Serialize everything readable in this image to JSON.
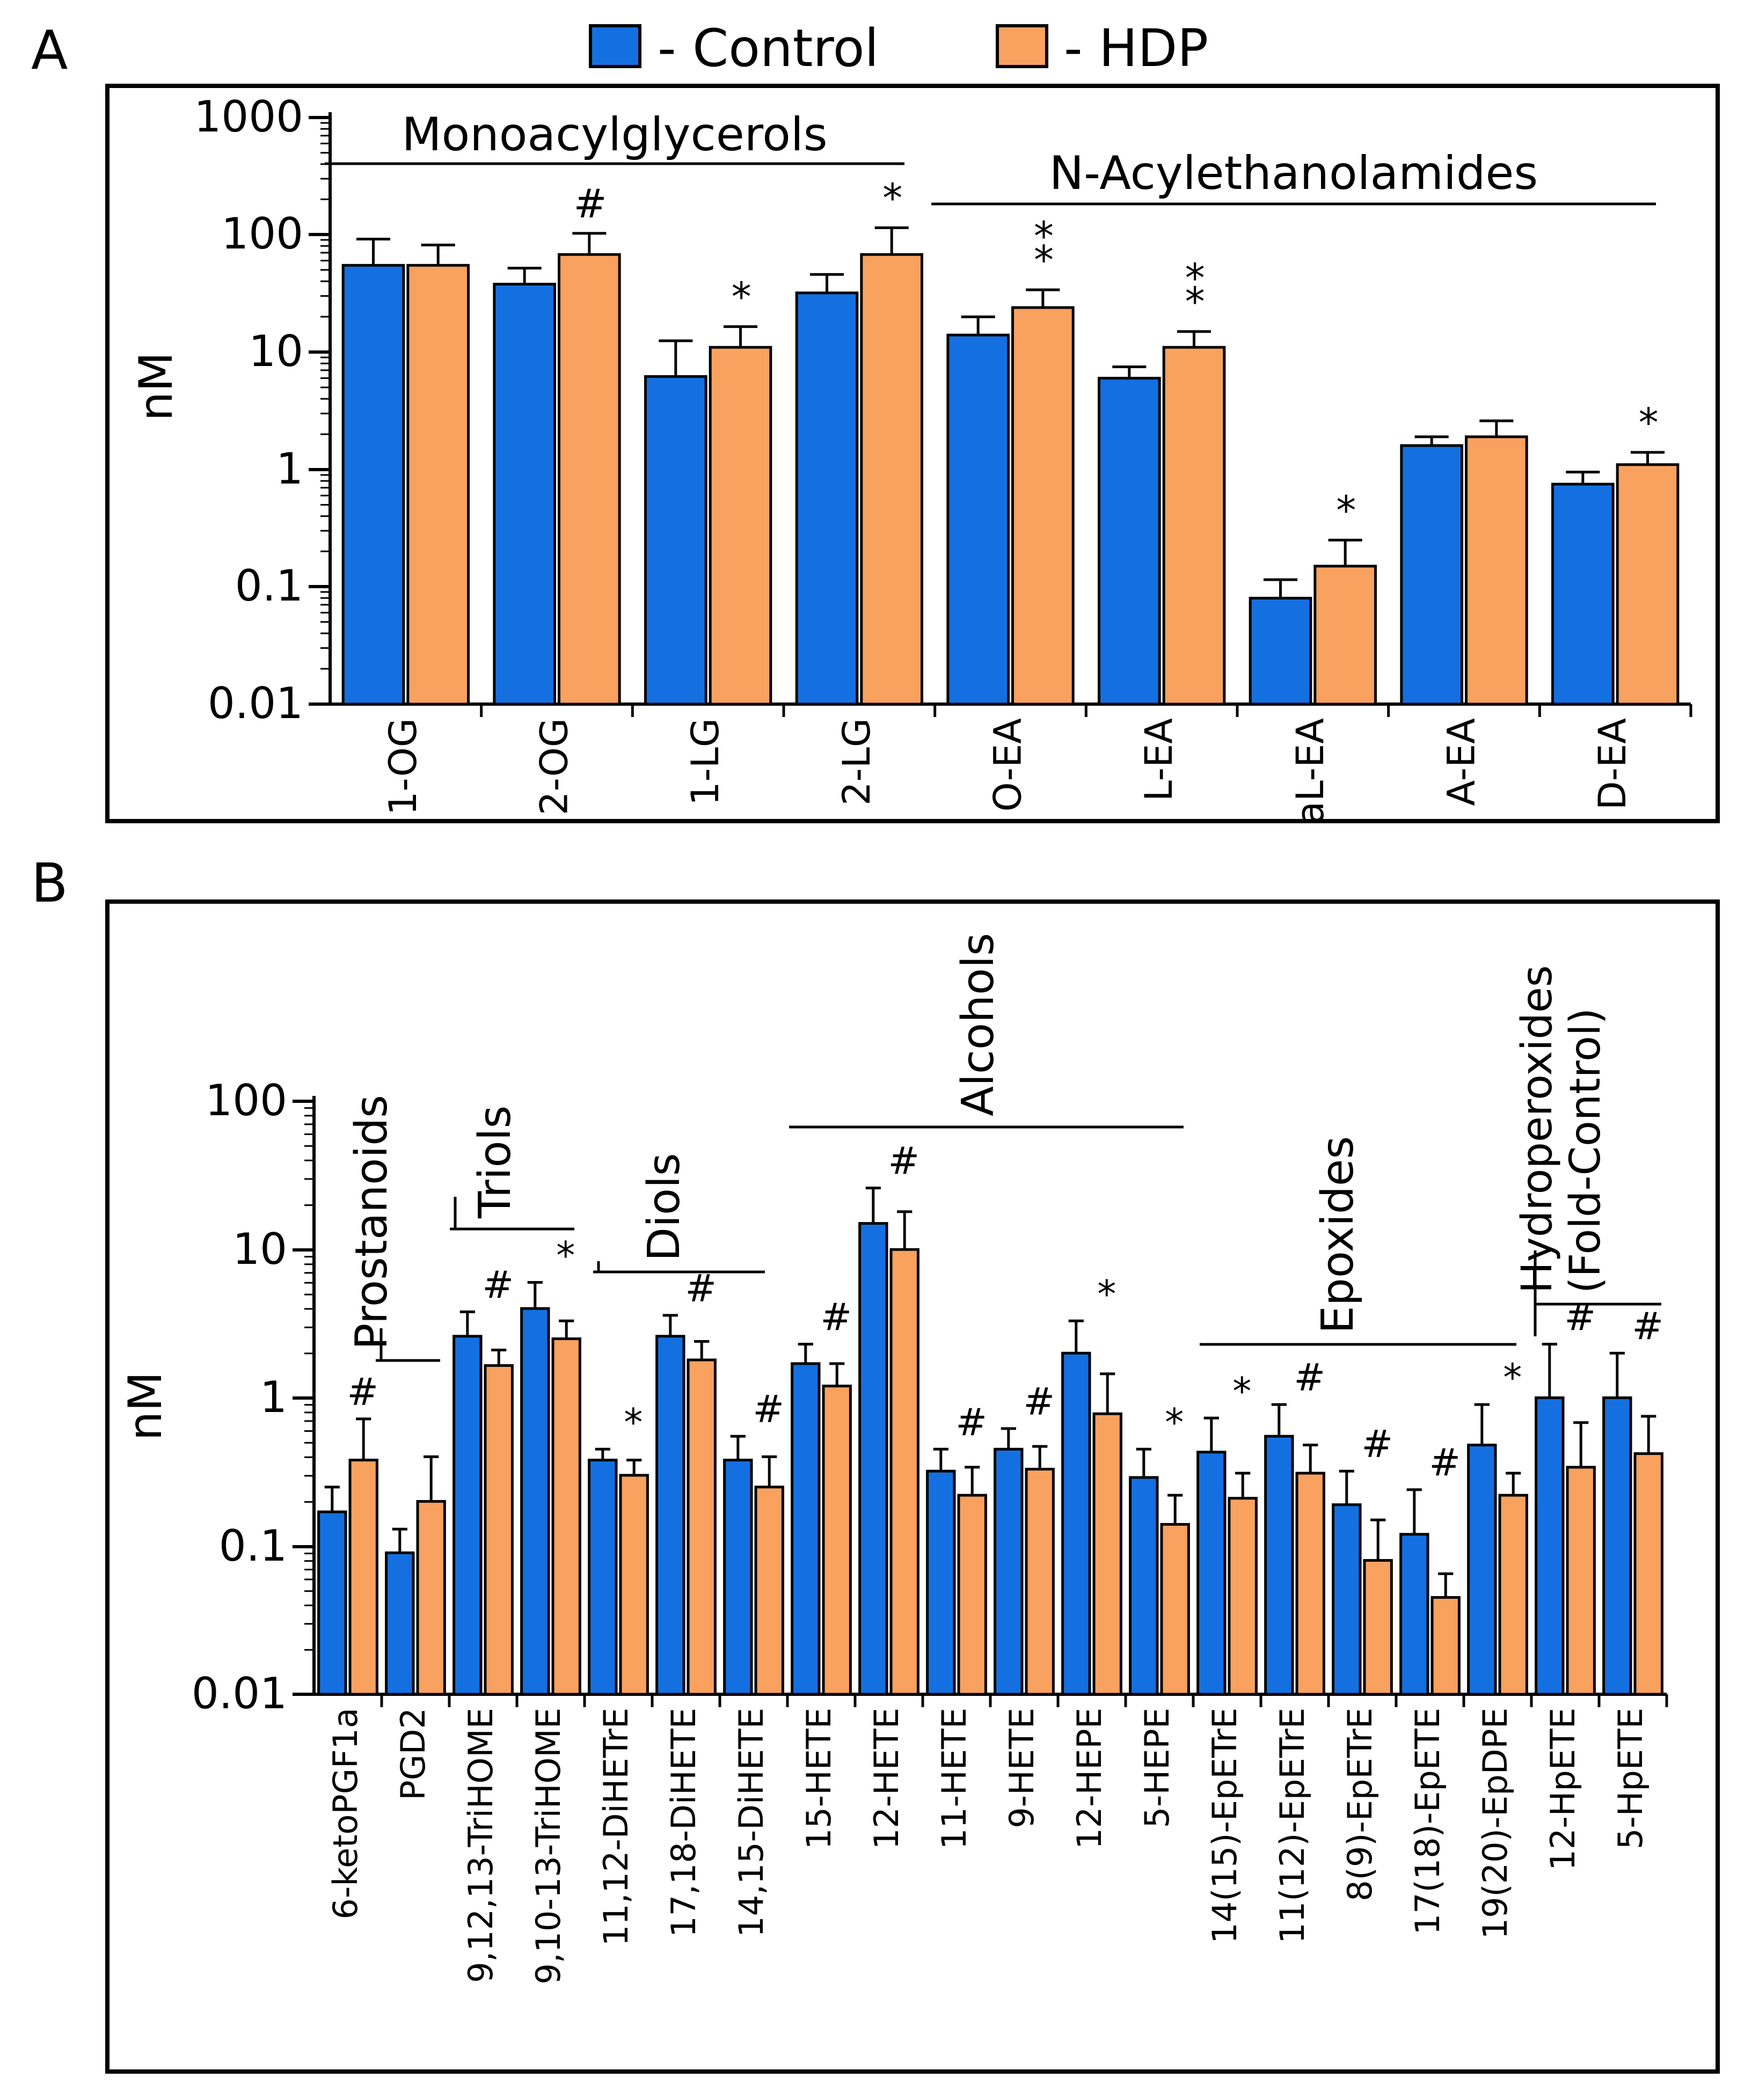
{
  "legend": {
    "items": [
      {
        "label": "- Control",
        "color": "#1470E0"
      },
      {
        "label": "- HDP",
        "color": "#F9A15E"
      }
    ]
  },
  "panel_labels": {
    "a": "A",
    "b": "B"
  },
  "colors": {
    "control": "#1470E0",
    "hdp": "#F9A15E",
    "stroke": "#000000"
  },
  "chart_data": [
    {
      "type": "bar",
      "panel": "A",
      "ylabel": "nM",
      "yscale": "log",
      "ylim": [
        0.01,
        1000
      ],
      "yticks": [
        "0.01",
        "0.1",
        "1",
        "10",
        "100",
        "1000"
      ],
      "categories": [
        "1-OG",
        "2-OG",
        "1-LG",
        "2-LG",
        "O-EA",
        "L-EA",
        "aL-EA",
        "A-EA",
        "D-EA"
      ],
      "series": [
        {
          "name": "Control",
          "values": [
            55,
            38,
            6.2,
            32,
            14,
            6,
            0.08,
            1.6,
            0.75
          ],
          "errors": [
            92,
            52,
            12.5,
            46,
            20,
            7.5,
            0.115,
            1.9,
            0.95
          ]
        },
        {
          "name": "HDP",
          "values": [
            55,
            68,
            11,
            68,
            24,
            11,
            0.15,
            1.9,
            1.1
          ],
          "errors": [
            82,
            103,
            16.5,
            115,
            34,
            15,
            0.25,
            2.6,
            1.4
          ]
        }
      ],
      "significance": [
        "",
        "#",
        "*",
        "*",
        "**",
        "**",
        "*",
        "",
        "*"
      ],
      "groups": [
        {
          "label": "Monoacylglycerols",
          "from": 0,
          "to": 3
        },
        {
          "label": "N-Acylethanolamides",
          "from": 4,
          "to": 8
        }
      ]
    },
    {
      "type": "bar",
      "panel": "B",
      "ylabel": "nM",
      "yscale": "log",
      "ylim": [
        0.01,
        100
      ],
      "yticks": [
        "0.01",
        "0.1",
        "1",
        "10",
        "100"
      ],
      "categories": [
        "6-ketoPGF1a",
        "PGD2",
        "9,12,13-TriHOME",
        "9,10-13-TriHOME",
        "11,12-DiHETrE",
        "17,18-DiHETE",
        "14,15-DiHETE",
        "15-HETE",
        "12-HETE",
        "11-HETE",
        "9-HETE",
        "12-HEPE",
        "5-HEPE",
        "14(15)-EpETrE",
        "11(12)-EpETrE",
        "8(9)-EpETrE",
        "17(18)-EpETE",
        "19(20)-EpDPE",
        "12-HpETE",
        "5-HpETE"
      ],
      "series": [
        {
          "name": "Control",
          "values": [
            0.17,
            0.09,
            2.6,
            4,
            0.38,
            2.6,
            0.38,
            1.7,
            15,
            0.32,
            0.45,
            2,
            0.29,
            0.43,
            0.55,
            0.19,
            0.12,
            0.48,
            1,
            1
          ],
          "errors": [
            0.25,
            0.13,
            3.8,
            6,
            0.45,
            3.6,
            0.55,
            2.3,
            26,
            0.45,
            0.62,
            3.3,
            0.45,
            0.73,
            0.9,
            0.32,
            0.24,
            0.9,
            2.3,
            2
          ]
        },
        {
          "name": "HDP",
          "values": [
            0.38,
            0.2,
            1.65,
            2.5,
            0.3,
            1.8,
            0.25,
            1.2,
            10,
            0.22,
            0.33,
            0.78,
            0.14,
            0.21,
            0.31,
            0.08,
            0.045,
            0.22,
            0.34,
            0.42
          ],
          "errors": [
            0.72,
            0.4,
            2.1,
            3.3,
            0.38,
            2.4,
            0.4,
            1.7,
            18,
            0.34,
            0.47,
            1.45,
            0.22,
            0.31,
            0.48,
            0.15,
            0.065,
            0.31,
            0.68,
            0.75
          ]
        }
      ],
      "significance": [
        "#",
        "",
        "#",
        "*",
        "*",
        "#",
        "#",
        "#",
        "#",
        "#",
        "#",
        "*",
        "*",
        "*",
        "#",
        "#",
        "#",
        "*",
        "#",
        "#"
      ],
      "groups": [
        {
          "label": "Prostanoids",
          "from": 0,
          "to": 1
        },
        {
          "label": "Triols",
          "from": 2,
          "to": 3
        },
        {
          "label": "Diols",
          "from": 4,
          "to": 6
        },
        {
          "label": "Alcohols",
          "from": 7,
          "to": 12
        },
        {
          "label": "Epoxides",
          "from": 13,
          "to": 17
        },
        {
          "label": "Hydroperoxides (Fold-Control)",
          "from": 18,
          "to": 19
        }
      ]
    }
  ]
}
